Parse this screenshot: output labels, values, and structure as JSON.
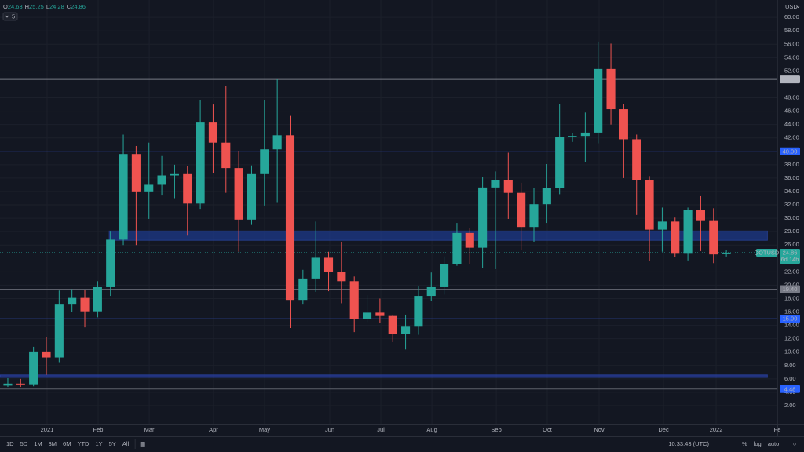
{
  "chart_data": {
    "type": "candlestick",
    "ohlc_header": [
      {
        "label": "O",
        "value": 24.63
      },
      {
        "label": "H",
        "value": 25.25
      },
      {
        "label": "L",
        "value": 24.28
      },
      {
        "label": "C",
        "value": 24.86
      }
    ],
    "interval_badge": "5",
    "currency": "USD",
    "x": [
      0,
      1,
      2,
      3,
      4,
      5,
      6,
      7,
      8,
      9,
      10,
      11,
      12,
      13,
      14,
      15,
      16,
      17,
      18,
      19,
      20,
      21,
      22,
      23,
      24,
      25,
      26,
      27,
      28,
      29,
      30,
      31,
      32,
      33,
      34,
      35,
      36,
      37,
      38,
      39,
      40,
      41,
      42,
      43,
      44,
      45,
      46,
      47,
      48,
      49,
      50,
      51,
      52,
      53,
      54,
      55,
      56
    ],
    "open": [
      5.0,
      5.3,
      5.2,
      10.1,
      9.2,
      17.1,
      18.1,
      16.1,
      19.7,
      26.8,
      39.6,
      33.9,
      35.0,
      36.4,
      36.6,
      32.2,
      44.3,
      41.3,
      37.5,
      29.8,
      36.6,
      40.3,
      42.4,
      17.8,
      21.0,
      24.1,
      22.0,
      20.6,
      15.0,
      15.9,
      15.4,
      12.7,
      13.8,
      18.4,
      19.7,
      23.2,
      27.8,
      25.6,
      34.6,
      35.7,
      33.8,
      28.7,
      32.1,
      34.5,
      42.1,
      42.3,
      42.8,
      52.3,
      46.3,
      41.8,
      35.7,
      28.3,
      29.5,
      24.7,
      31.3,
      29.7,
      24.63
    ],
    "high": [
      6.1,
      6.0,
      10.8,
      12.3,
      19.2,
      19.4,
      19.3,
      20.6,
      28.0,
      42.5,
      40.8,
      41.3,
      39.3,
      38.0,
      37.8,
      47.6,
      47.0,
      49.7,
      40.0,
      37.9,
      47.6,
      50.75,
      45.3,
      22.3,
      29.5,
      25.0,
      26.5,
      21.3,
      18.5,
      18.0,
      15.6,
      15.6,
      19.8,
      21.9,
      24.3,
      29.3,
      28.5,
      36.2,
      37.0,
      39.8,
      35.3,
      34.5,
      38.1,
      47.1,
      42.7,
      45.8,
      56.4,
      56.1,
      47.1,
      42.5,
      36.3,
      31.6,
      30.1,
      31.6,
      33.3,
      31.5,
      25.25
    ],
    "low": [
      4.8,
      4.8,
      4.9,
      6.6,
      8.5,
      16.0,
      13.7,
      15.2,
      18.4,
      26.0,
      26.0,
      29.9,
      33.4,
      33.0,
      27.4,
      31.4,
      36.8,
      33.8,
      25.0,
      29.0,
      31.9,
      32.3,
      13.6,
      17.1,
      19.0,
      19.1,
      17.3,
      13.0,
      14.5,
      14.4,
      11.5,
      10.4,
      12.6,
      17.6,
      18.6,
      22.9,
      23.1,
      22.6,
      22.4,
      29.9,
      25.2,
      26.4,
      29.3,
      33.6,
      41.4,
      38.4,
      41.2,
      44.0,
      36.0,
      30.5,
      23.6,
      25.0,
      24.2,
      23.7,
      25.1,
      23.3,
      24.28
    ],
    "close": [
      5.3,
      5.2,
      10.1,
      9.2,
      17.1,
      18.1,
      16.1,
      19.7,
      26.8,
      39.6,
      33.9,
      35.0,
      36.4,
      36.6,
      32.2,
      44.3,
      41.3,
      37.5,
      29.8,
      36.6,
      40.3,
      42.4,
      17.8,
      21.0,
      24.1,
      22.0,
      20.6,
      15.0,
      15.9,
      15.4,
      12.7,
      13.8,
      18.4,
      19.7,
      23.2,
      27.8,
      25.6,
      34.6,
      35.7,
      33.8,
      28.7,
      32.1,
      34.5,
      42.1,
      42.3,
      42.8,
      52.3,
      46.3,
      41.8,
      35.7,
      28.3,
      29.5,
      24.7,
      31.3,
      29.7,
      24.6,
      24.86
    ],
    "up_color": "#26a69a",
    "down_color": "#ef5350",
    "xlim": [
      -0.61,
      59.97
    ],
    "xticks": [
      {
        "value": 3.06,
        "label": "2021"
      },
      {
        "value": 7.04,
        "label": "Feb"
      },
      {
        "value": 11.02,
        "label": "Mar"
      },
      {
        "value": 16.03,
        "label": "Apr"
      },
      {
        "value": 20.01,
        "label": "May"
      },
      {
        "value": 25.09,
        "label": "Jun"
      },
      {
        "value": 29.07,
        "label": "Jul"
      },
      {
        "value": 33.05,
        "label": "Aug"
      },
      {
        "value": 38.07,
        "label": "Sep"
      },
      {
        "value": 42.04,
        "label": "Oct"
      },
      {
        "value": 46.08,
        "label": "Nov"
      },
      {
        "value": 51.1,
        "label": "Dec"
      },
      {
        "value": 55.2,
        "label": "2022"
      },
      {
        "value": 59.97,
        "label": "Fe"
      }
    ],
    "ylim": [
      -0.7,
      62.6
    ],
    "yticks": [
      {
        "value": 2,
        "label": "2.00"
      },
      {
        "value": 4,
        "label": "4.00"
      },
      {
        "value": 6,
        "label": "6.00"
      },
      {
        "value": 8,
        "label": "8.00"
      },
      {
        "value": 10,
        "label": "10.00"
      },
      {
        "value": 12,
        "label": "12.00"
      },
      {
        "value": 14,
        "label": "14.00"
      },
      {
        "value": 16,
        "label": "16.00"
      },
      {
        "value": 18,
        "label": "18.00"
      },
      {
        "value": 20,
        "label": "20.00"
      },
      {
        "value": 22,
        "label": "22.00"
      },
      {
        "value": 26,
        "label": "26.00"
      },
      {
        "value": 28,
        "label": "28.00"
      },
      {
        "value": 30,
        "label": "30.00"
      },
      {
        "value": 32,
        "label": "32.00"
      },
      {
        "value": 34,
        "label": "34.00"
      },
      {
        "value": 36,
        "label": "36.00"
      },
      {
        "value": 38,
        "label": "38.00"
      },
      {
        "value": 42,
        "label": "42.00"
      },
      {
        "value": 44,
        "label": "44.00"
      },
      {
        "value": 46,
        "label": "46.00"
      },
      {
        "value": 48,
        "label": "48.00"
      },
      {
        "value": 52,
        "label": "52.00"
      },
      {
        "value": 54,
        "label": "54.00"
      },
      {
        "value": 56,
        "label": "56.00"
      },
      {
        "value": 58,
        "label": "58.00"
      },
      {
        "value": 60,
        "label": "60.00"
      }
    ],
    "grid": true,
    "zones": [
      {
        "ylim": [
          26.7,
          28.1
        ],
        "xlim": [
          7.9,
          59.2
        ],
        "color": "#1e3a8a"
      },
      {
        "ylim": [
          6.2,
          6.6
        ],
        "xlim": [
          -0.61,
          59.2
        ],
        "color": "#283c9c"
      }
    ],
    "hlines": [
      {
        "value": 50.75,
        "label": "50.75",
        "color": "#787b86",
        "tag_color": "#b2b5be"
      },
      {
        "value": 40,
        "label": "40.00",
        "color": "#2a3f8f",
        "tag_color": "#2962ff"
      },
      {
        "value": 19.4,
        "label": "19.40",
        "color": "#5d606b",
        "tag_color": "#787b86"
      },
      {
        "value": 15,
        "label": "15.00",
        "color": "#2a3f8f",
        "tag_color": "#2962ff"
      },
      {
        "value": 4.48,
        "label": "4.48",
        "color": "#5d606b",
        "tag_color": "#2962ff"
      }
    ],
    "last_price": {
      "value": 24.86,
      "symbol": "DOTUSD",
      "countdown": "6d 14h",
      "color": "#26a69a"
    }
  },
  "toolbar": {
    "ranges": [
      "1D",
      "5D",
      "1M",
      "3M",
      "6M",
      "YTD",
      "1Y",
      "5Y",
      "All"
    ],
    "clock": "10:33:43 (UTC)",
    "options": [
      "%",
      "log",
      "auto"
    ]
  }
}
